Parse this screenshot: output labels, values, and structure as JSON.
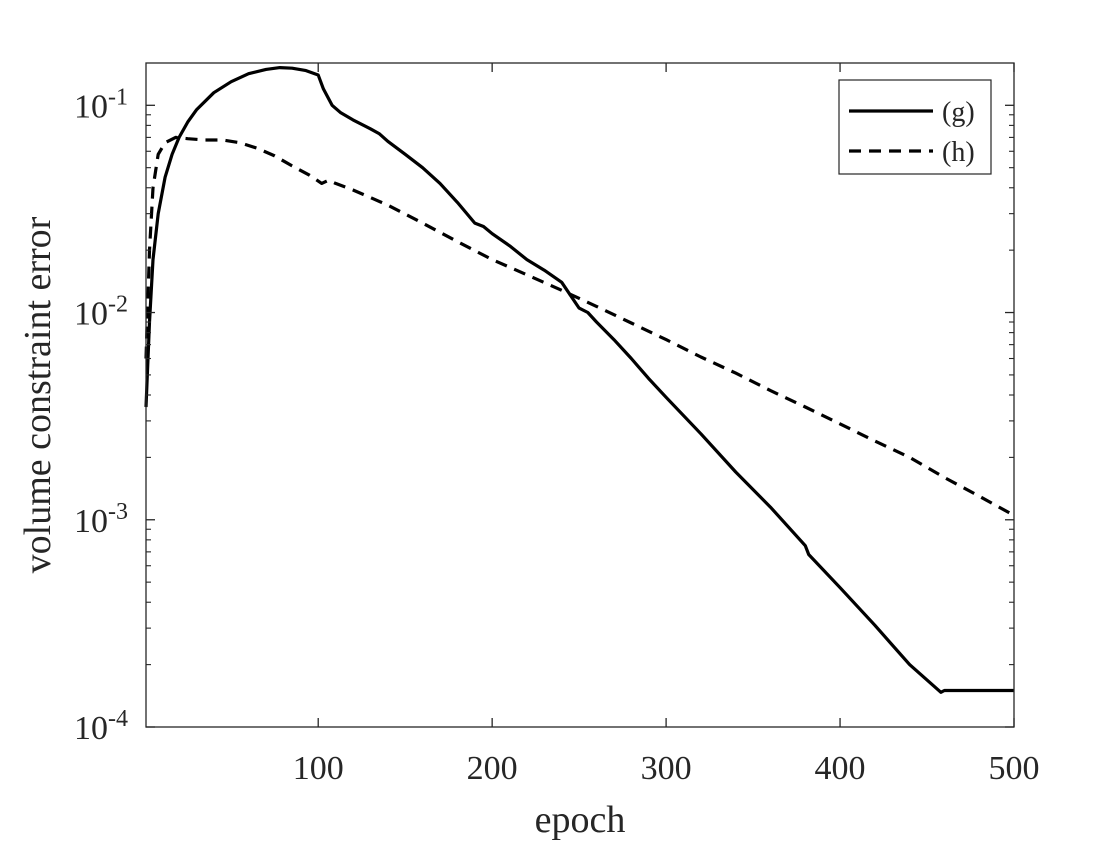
{
  "chart_data": {
    "type": "line",
    "xlabel": "epoch",
    "ylabel": "volume constraint error",
    "x_ticks": [
      100,
      200,
      300,
      400,
      500
    ],
    "y_ticks": [
      {
        "value": 0.0001,
        "base": "10",
        "exp": "-4"
      },
      {
        "value": 0.001,
        "base": "10",
        "exp": "-3"
      },
      {
        "value": 0.01,
        "base": "10",
        "exp": "-2"
      },
      {
        "value": 0.1,
        "base": "10",
        "exp": "-1"
      }
    ],
    "xlim": [
      1,
      500
    ],
    "ylim": [
      0.0001,
      0.16
    ],
    "yscale": "log",
    "grid": false,
    "legend_position": "top-right",
    "series": [
      {
        "name": "(g)",
        "style": "solid",
        "color": "#000000",
        "points": [
          [
            1,
            0.0035
          ],
          [
            3,
            0.009
          ],
          [
            5,
            0.018
          ],
          [
            8,
            0.03
          ],
          [
            12,
            0.045
          ],
          [
            16,
            0.058
          ],
          [
            20,
            0.07
          ],
          [
            25,
            0.083
          ],
          [
            30,
            0.095
          ],
          [
            40,
            0.115
          ],
          [
            50,
            0.13
          ],
          [
            60,
            0.142
          ],
          [
            70,
            0.149
          ],
          [
            78,
            0.152
          ],
          [
            85,
            0.151
          ],
          [
            93,
            0.147
          ],
          [
            100,
            0.14
          ],
          [
            103,
            0.12
          ],
          [
            108,
            0.1
          ],
          [
            113,
            0.092
          ],
          [
            120,
            0.085
          ],
          [
            130,
            0.077
          ],
          [
            135,
            0.073
          ],
          [
            140,
            0.067
          ],
          [
            150,
            0.058
          ],
          [
            160,
            0.05
          ],
          [
            170,
            0.042
          ],
          [
            180,
            0.034
          ],
          [
            190,
            0.027
          ],
          [
            195,
            0.026
          ],
          [
            200,
            0.024
          ],
          [
            210,
            0.021
          ],
          [
            220,
            0.018
          ],
          [
            230,
            0.016
          ],
          [
            240,
            0.014
          ],
          [
            250,
            0.0105
          ],
          [
            255,
            0.01
          ],
          [
            260,
            0.009
          ],
          [
            270,
            0.0074
          ],
          [
            280,
            0.006
          ],
          [
            290,
            0.0048
          ],
          [
            300,
            0.0039
          ],
          [
            320,
            0.0026
          ],
          [
            340,
            0.0017
          ],
          [
            360,
            0.00115
          ],
          [
            380,
            0.00075
          ],
          [
            382,
            0.00068
          ],
          [
            400,
            0.00047
          ],
          [
            420,
            0.00031
          ],
          [
            440,
            0.0002
          ],
          [
            458,
            0.000147
          ],
          [
            460,
            0.00015
          ],
          [
            480,
            0.00015
          ],
          [
            500,
            0.00015
          ]
        ]
      },
      {
        "name": "(h)",
        "style": "dashed",
        "color": "#000000",
        "points": [
          [
            1,
            0.006
          ],
          [
            3,
            0.02
          ],
          [
            5,
            0.04
          ],
          [
            8,
            0.058
          ],
          [
            12,
            0.066
          ],
          [
            18,
            0.07
          ],
          [
            25,
            0.069
          ],
          [
            35,
            0.068
          ],
          [
            45,
            0.068
          ],
          [
            55,
            0.066
          ],
          [
            65,
            0.062
          ],
          [
            75,
            0.057
          ],
          [
            85,
            0.051
          ],
          [
            95,
            0.046
          ],
          [
            102,
            0.042
          ],
          [
            106,
            0.0435
          ],
          [
            110,
            0.042
          ],
          [
            120,
            0.039
          ],
          [
            140,
            0.033
          ],
          [
            160,
            0.027
          ],
          [
            180,
            0.022
          ],
          [
            200,
            0.018
          ],
          [
            220,
            0.0152
          ],
          [
            240,
            0.0128
          ],
          [
            260,
            0.0107
          ],
          [
            280,
            0.0089
          ],
          [
            300,
            0.0074
          ],
          [
            320,
            0.0061
          ],
          [
            340,
            0.0051
          ],
          [
            360,
            0.0042
          ],
          [
            380,
            0.0035
          ],
          [
            400,
            0.0029
          ],
          [
            420,
            0.0024
          ],
          [
            440,
            0.002
          ],
          [
            460,
            0.0016
          ],
          [
            480,
            0.0013
          ],
          [
            500,
            0.00105
          ]
        ]
      }
    ]
  }
}
